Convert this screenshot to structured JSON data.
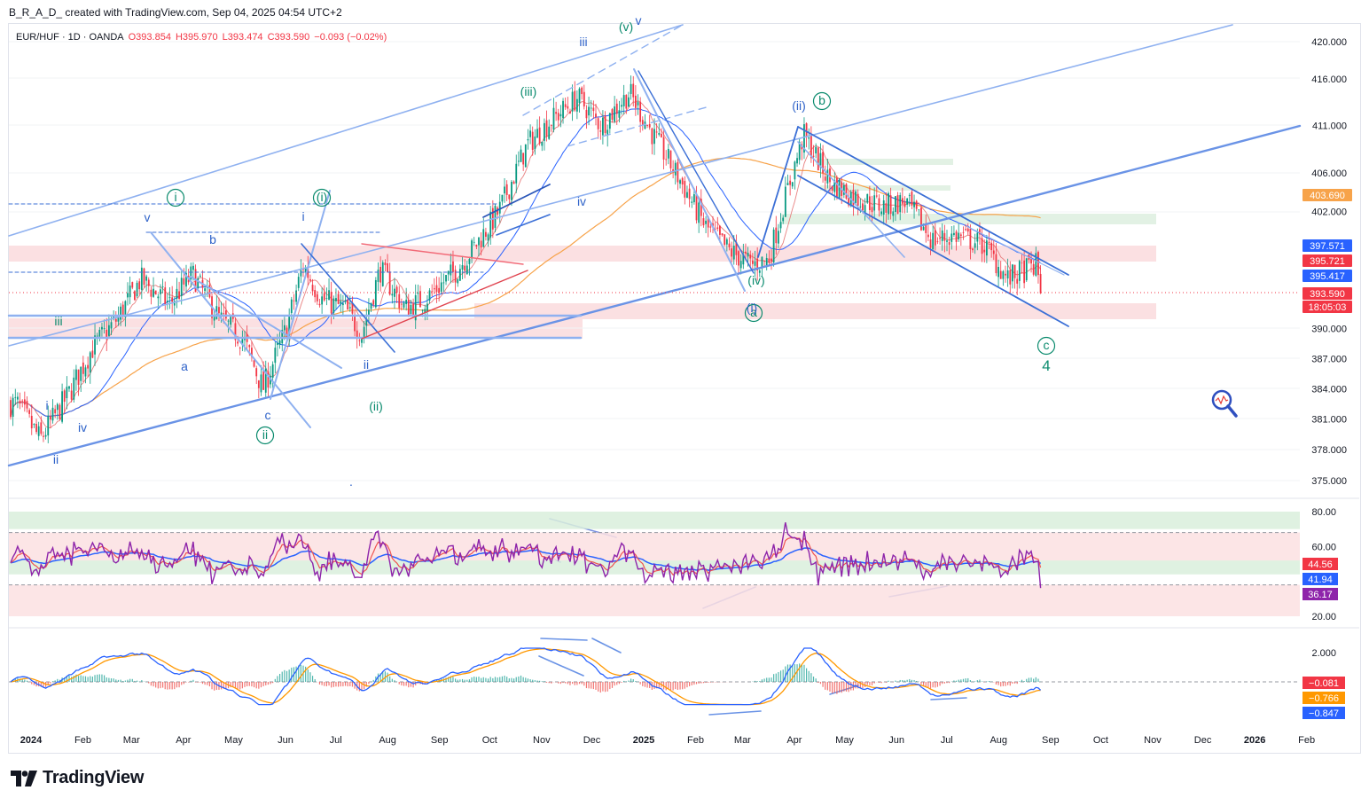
{
  "header": {
    "text": "B_R_A_D_ created with TradingView.com, Sep 04, 2025 04:54 UTC+2"
  },
  "legend": {
    "symbol": "EUR/HUF · 1D · OANDA",
    "open": "O393.854",
    "high": "H395.970",
    "low": "L393.474",
    "close": "C393.590",
    "change": "−0.093 (−0.02%)"
  },
  "brand": {
    "name": "TradingView"
  },
  "colors": {
    "up": "#089981",
    "down": "#f23645",
    "ma_blue": "#2962ff",
    "ma_orange": "#f7a34a",
    "trend_light": "#8fb1f0",
    "trend_dark": "#3b6fd6",
    "wave_green": "#0b8b6e",
    "wave_blue": "#2f63c9",
    "rsi_purple": "#8e24aa",
    "macd_blue": "#2962ff",
    "macd_orange": "#ff9800"
  },
  "chart_data": [
    {
      "type": "candlestick",
      "pane": "price",
      "symbol": "EUR/HUF",
      "interval": "1D",
      "source": "OANDA",
      "x_tick_labels": [
        "2024",
        "Feb",
        "Mar",
        "Apr",
        "May",
        "Jun",
        "Jul",
        "Aug",
        "Sep",
        "Oct",
        "Nov",
        "Dec",
        "2025",
        "Feb",
        "Mar",
        "Apr",
        "May",
        "Jun",
        "Jul",
        "Aug",
        "Sep",
        "Oct",
        "Nov",
        "Dec",
        "2026",
        "Feb"
      ],
      "y_tick_labels": [
        "420.000",
        "416.000",
        "411.000",
        "406.000",
        "402.000",
        "390.000",
        "387.000",
        "384.000",
        "381.000",
        "378.000",
        "375.000"
      ],
      "ylim": [
        373.5,
        422
      ],
      "scale": "log",
      "close_approx": {
        "dates": [
          "2024-01-01",
          "2024-01-15",
          "2024-02-01",
          "2024-02-15",
          "2024-03-01",
          "2024-03-15",
          "2024-04-01",
          "2024-04-15",
          "2024-05-01",
          "2024-05-15",
          "2024-05-27",
          "2024-06-10",
          "2024-06-20",
          "2024-07-01",
          "2024-07-15",
          "2024-07-25",
          "2024-08-05",
          "2024-08-20",
          "2024-09-01",
          "2024-09-20",
          "2024-10-01",
          "2024-10-15",
          "2024-11-01",
          "2024-11-15",
          "2024-12-01",
          "2024-12-15",
          "2025-01-01",
          "2025-01-15",
          "2025-02-01",
          "2025-02-15",
          "2025-03-01",
          "2025-03-15",
          "2025-03-25",
          "2025-04-05",
          "2025-04-15",
          "2025-05-01",
          "2025-05-15",
          "2025-06-01",
          "2025-06-15",
          "2025-07-01",
          "2025-07-15",
          "2025-08-01",
          "2025-08-15",
          "2025-09-01",
          "2025-09-04"
        ],
        "values": [
          382.5,
          379.0,
          383.5,
          388.0,
          391.0,
          395.0,
          392.5,
          395.5,
          391.0,
          389.0,
          384.0,
          390.0,
          396.5,
          393.0,
          392.0,
          389.5,
          396.0,
          392.0,
          393.0,
          396.0,
          398.5,
          402.0,
          409.0,
          411.5,
          414.0,
          411.0,
          414.5,
          410.0,
          405.0,
          400.5,
          398.0,
          396.5,
          397.0,
          404.0,
          410.0,
          405.0,
          403.5,
          402.5,
          403.0,
          399.0,
          399.5,
          398.5,
          395.0,
          396.5,
          393.59
        ]
      },
      "last_price": 393.59,
      "ohlc_last": {
        "open": 393.854,
        "high": 395.97,
        "low": 393.474,
        "close": 393.59,
        "change": -0.093,
        "change_pct": -0.02
      },
      "price_badges": [
        {
          "label": "403.690",
          "color": "#f7a34a"
        },
        {
          "label": "397.571",
          "color": "#2962ff"
        },
        {
          "label": "395.721",
          "color": "#f23645"
        },
        {
          "label": "395.417",
          "color": "#2962ff"
        },
        {
          "label": "393.590",
          "color": "#f23645"
        },
        {
          "label": "18:05:03",
          "color": "#f23645"
        }
      ],
      "moving_averages": [
        {
          "color": "#2962ff",
          "last": 395.417
        },
        {
          "color": "#f7a34a",
          "last": 403.69
        },
        {
          "color": "#f23645",
          "last": 395.721
        }
      ],
      "wave_labels": [
        "i",
        "ii",
        "iii",
        "iv",
        "v",
        "a",
        "b",
        "c",
        "(i)",
        "(ii)",
        "(iii)",
        "(iv)",
        "(v)",
        "4"
      ]
    },
    {
      "type": "line",
      "pane": "rsi",
      "y_tick_labels": [
        "80.00",
        "60.00",
        "20.00"
      ],
      "ylim": [
        15,
        85
      ],
      "zones": [
        {
          "range": [
            70,
            80
          ],
          "color": "#d9eedc"
        },
        {
          "range": [
            44,
            52
          ],
          "color": "#d9eedc"
        },
        {
          "range": [
            52,
            68
          ],
          "color": "#fbe0e2"
        },
        {
          "range": [
            20,
            38
          ],
          "color": "#fbe0e2"
        }
      ],
      "dashed_levels": [
        68,
        38
      ],
      "last_values": [
        {
          "label": "44.56",
          "color": "#f23645"
        },
        {
          "label": "41.94",
          "color": "#2962ff"
        },
        {
          "label": "36.17",
          "color": "#8e24aa"
        }
      ]
    },
    {
      "type": "macd",
      "pane": "macd",
      "y_tick_labels": [
        "2.000"
      ],
      "ylim": [
        -1.6,
        2.4
      ],
      "last_values": [
        {
          "label": "−0.081",
          "color": "#f23645"
        },
        {
          "label": "−0.766",
          "color": "#ff9800"
        },
        {
          "label": "−0.847",
          "color": "#2962ff"
        }
      ]
    }
  ]
}
